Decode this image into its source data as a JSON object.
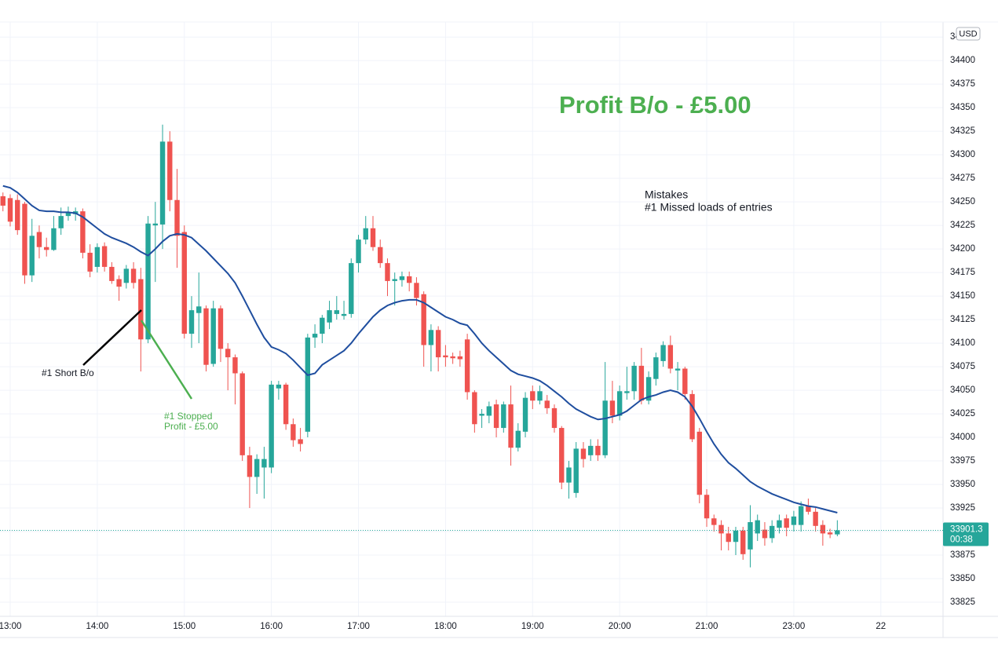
{
  "chart_data": {
    "type": "candlestick",
    "currency": "USD",
    "countdown": "00:38",
    "profit_note": "Profit B/o - £5.00",
    "mistakes": [
      "Mistakes",
      "#1  Missed loads of entries"
    ],
    "entry_label": "#1 Short B/o",
    "exit_label": [
      "#1 Stopped",
      "Profit - £5.00"
    ],
    "up_color": "#26a69a",
    "down_color": "#ef5350",
    "grid": true,
    "ylim": [
      33810,
      34441
    ],
    "yticks": [
      33825,
      33850,
      33875,
      33900,
      33925,
      33950,
      33975,
      34000,
      34025,
      34050,
      34075,
      34100,
      34125,
      34150,
      34175,
      34200,
      34225,
      34250,
      34275,
      34300,
      34325,
      34350,
      34375,
      34400,
      34425
    ],
    "categories": [
      null,
      "13:00",
      null,
      null,
      null,
      null,
      null,
      null,
      null,
      null,
      null,
      null,
      null,
      "14:00",
      null,
      null,
      null,
      null,
      null,
      null,
      null,
      null,
      null,
      null,
      null,
      "15:00",
      null,
      null,
      null,
      null,
      null,
      null,
      null,
      null,
      null,
      null,
      null,
      "16:00",
      null,
      null,
      null,
      null,
      null,
      null,
      null,
      null,
      null,
      null,
      null,
      "17:00",
      null,
      null,
      null,
      null,
      null,
      null,
      null,
      null,
      null,
      null,
      null,
      "18:00",
      null,
      null,
      null,
      null,
      null,
      null,
      null,
      null,
      null,
      null,
      null,
      "19:00",
      null,
      null,
      null,
      null,
      null,
      null,
      null,
      null,
      null,
      null,
      null,
      "20:00",
      null,
      null,
      null,
      null,
      null,
      null,
      null,
      null,
      null,
      null,
      null,
      "21:00",
      null,
      null,
      null,
      null,
      null,
      null,
      null,
      null,
      null,
      null,
      null,
      "23:00",
      null,
      null,
      null,
      null,
      null,
      null,
      null,
      null,
      null,
      null,
      null,
      "22"
    ],
    "open": [
      34256,
      34254,
      34252,
      34248,
      34172,
      34218,
      34202,
      34199,
      34222,
      34235,
      34237,
      34240,
      34196,
      34181,
      34203,
      34181,
      34168,
      34164,
      34179,
      34168,
      34104,
      34225,
      34226,
      34314,
      34252,
      34218,
      34110,
      34132,
      34137,
      34078,
      34137,
      34094,
      34085,
      34068,
      33981,
      33958,
      33968,
      33968,
      34052,
      34056,
      34014,
      33998,
      34006,
      34106,
      34110,
      34122,
      34131,
      34129,
      34131,
      34185,
      34210,
      34222,
      34202,
      34185,
      34166,
      34167,
      34171,
      34164,
      34152,
      34098,
      34114,
      34087,
      34086,
      34086,
      34104,
      34048,
      34023,
      34023,
      34035,
      34010,
      34035,
      33989,
      34006,
      34049,
      34039,
      34039,
      34031,
      34010,
      33952,
      33941,
      33988,
      33981,
      33991,
      33981,
      34039,
      34023,
      34047,
      34049,
      34076,
      34039,
      34062,
      34081,
      34098,
      34071,
      34073,
      34046,
      34006,
      33939,
      33914,
      33907,
      33898,
      33889,
      33901,
      33881,
      33898,
      33902,
      33893,
      33904,
      33914,
      33907,
      33907,
      33927,
      33921,
      33907,
      33899,
      33897,
      null,
      null,
      null,
      null,
      null,
      null
    ],
    "high": [
      34260,
      34258,
      34258,
      34250,
      34232,
      34225,
      34212,
      34235,
      34244,
      34245,
      34244,
      34243,
      34205,
      34206,
      34207,
      34186,
      34172,
      34183,
      34186,
      34180,
      34235,
      34250,
      34332,
      34325,
      34285,
      34225,
      34150,
      34175,
      34140,
      34145,
      34140,
      34100,
      34088,
      34070,
      33990,
      33982,
      33990,
      34060,
      34060,
      34058,
      34020,
      34010,
      34110,
      34120,
      34130,
      34145,
      34150,
      34145,
      34190,
      34215,
      34235,
      34235,
      34210,
      34190,
      34175,
      34176,
      34176,
      34170,
      34155,
      34120,
      34118,
      34098,
      34090,
      34092,
      34110,
      34050,
      34030,
      34038,
      34040,
      34038,
      34055,
      34015,
      34048,
      34055,
      34055,
      34045,
      34035,
      34012,
      33975,
      33995,
      33995,
      33998,
      33998,
      34080,
      34060,
      34055,
      34075,
      34080,
      34095,
      34070,
      34090,
      34102,
      34108,
      34080,
      34075,
      34050,
      34010,
      33945,
      33918,
      33912,
      33905,
      33905,
      33905,
      33928,
      33918,
      33910,
      33912,
      33918,
      33918,
      33922,
      33932,
      33935,
      33925,
      33912,
      33903,
      33912,
      null,
      null,
      null,
      null,
      null,
      null
    ],
    "low": [
      34240,
      34224,
      34215,
      34163,
      34165,
      34190,
      34192,
      34198,
      34215,
      34230,
      34230,
      34190,
      34170,
      34175,
      34176,
      34163,
      34145,
      34158,
      34158,
      34070,
      34100,
      34165,
      34200,
      34240,
      34180,
      34105,
      34095,
      34100,
      34070,
      34075,
      34080,
      34050,
      34035,
      33975,
      33925,
      33940,
      33935,
      33962,
      34040,
      34008,
      33990,
      33985,
      34000,
      34095,
      34100,
      34115,
      34125,
      34125,
      34127,
      34175,
      34205,
      34198,
      34180,
      34150,
      34140,
      34160,
      34155,
      34140,
      34075,
      34070,
      34070,
      34075,
      34078,
      34075,
      34040,
      34005,
      34010,
      34015,
      34000,
      34005,
      33970,
      33985,
      34000,
      34030,
      34035,
      34025,
      34005,
      33945,
      33935,
      33936,
      33968,
      33975,
      33975,
      33978,
      34015,
      34018,
      34040,
      34040,
      34035,
      34035,
      34055,
      34075,
      34068,
      34050,
      34040,
      33995,
      33930,
      33905,
      33900,
      33880,
      33880,
      33875,
      33870,
      33862,
      33890,
      33885,
      33888,
      33898,
      33895,
      33900,
      33900,
      33918,
      33900,
      33885,
      33893,
      33895,
      null,
      null,
      null,
      null,
      null,
      null
    ],
    "close": [
      34246,
      34229,
      34220,
      34172,
      34214,
      34202,
      34199,
      34222,
      34235,
      34239,
      34240,
      34196,
      34176,
      34202,
      34181,
      34166,
      34160,
      34179,
      34164,
      34104,
      34227,
      34227,
      34314,
      34252,
      34214,
      34110,
      34135,
      34139,
      34077,
      34137,
      34094,
      34085,
      34068,
      33981,
      33958,
      33977,
      33977,
      34056,
      34056,
      34014,
      33997,
      33993,
      34106,
      34110,
      34127,
      34135,
      34135,
      34131,
      34185,
      34210,
      34222,
      34202,
      34185,
      34166,
      34168,
      34171,
      34164,
      34148,
      34098,
      34114,
      34085,
      34085,
      34084,
      34083,
      34048,
      34014,
      34025,
      34033,
      34010,
      34035,
      33989,
      34007,
      34042,
      34039,
      34049,
      34031,
      34010,
      33952,
      33968,
      33988,
      33977,
      33991,
      33981,
      34039,
      34023,
      34049,
      34049,
      34076,
      34039,
      34064,
      34085,
      34098,
      34073,
      34073,
      34046,
      33998,
      33939,
      33914,
      33907,
      33898,
      33889,
      33901,
      33876,
      33910,
      33912,
      33893,
      33906,
      33912,
      33904,
      33916,
      33927,
      33921,
      33906,
      33898,
      33897,
      33901.3,
      null,
      null,
      null,
      null,
      null,
      null
    ],
    "ma": {
      "color": "#1f4e9f",
      "values": [
        34267,
        34265,
        34260,
        34253,
        34246,
        34241,
        34240,
        34240,
        34239,
        34239,
        34238,
        34234,
        34228,
        34222,
        34216,
        34212,
        34209,
        34206,
        34202,
        34197,
        34193,
        34200,
        34208,
        34214,
        34216,
        34215,
        34212,
        34205,
        34198,
        34190,
        34182,
        34174,
        34164,
        34150,
        34135,
        34120,
        34106,
        34096,
        34093,
        34089,
        34082,
        34074,
        34066,
        34068,
        34077,
        34082,
        34087,
        34092,
        34100,
        34110,
        34119,
        34128,
        34135,
        34140,
        34143,
        34145,
        34146,
        34146,
        34143,
        34138,
        34133,
        34128,
        34125,
        34121,
        34119,
        34110,
        34100,
        34092,
        34085,
        34078,
        34071,
        34067,
        34065,
        34063,
        34060,
        34055,
        34049,
        34043,
        34036,
        34030,
        34026,
        34022,
        34019,
        34020,
        34022,
        34024,
        34028,
        34034,
        34040,
        34043,
        34045,
        34048,
        34050,
        34048,
        34043,
        34033,
        34020,
        34006,
        33993,
        33982,
        33973,
        33967,
        33960,
        33953,
        33948,
        33944,
        33940,
        33937,
        33934,
        33931,
        33929,
        33927,
        33926,
        33924,
        33922,
        33920,
        null,
        null,
        null,
        null,
        null,
        null
      ]
    }
  }
}
